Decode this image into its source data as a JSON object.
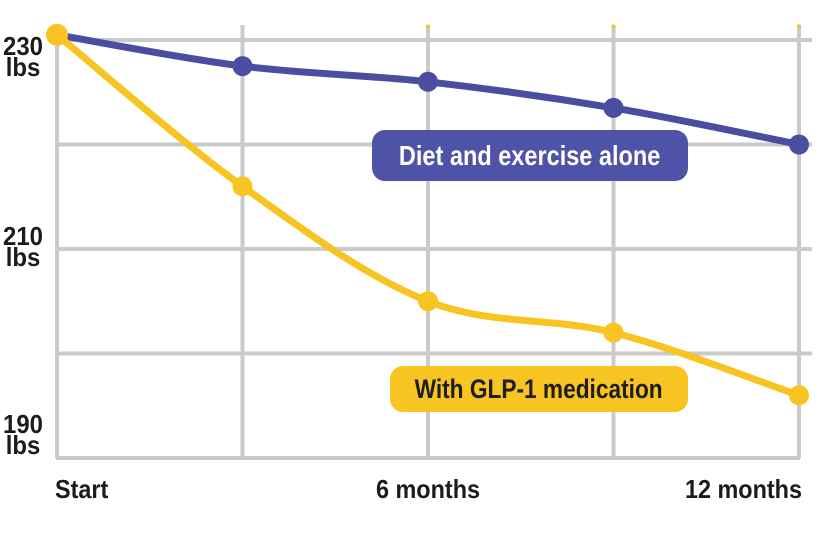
{
  "chart_data": {
    "type": "line",
    "title": "",
    "x_unit": "months",
    "x": [
      0,
      3,
      6,
      9,
      12
    ],
    "x_tick_labels": [
      {
        "text": "Start",
        "at": 0
      },
      {
        "text": "6 months",
        "at": 6
      },
      {
        "text": "12 months",
        "at": 12
      }
    ],
    "y_unit": "lbs",
    "y_gridlines": [
      230,
      220,
      210,
      200,
      190
    ],
    "y_tick_labels": [
      {
        "value": "230",
        "unit": "lbs",
        "at": 230
      },
      {
        "value": "210",
        "unit": "lbs",
        "at": 210
      },
      {
        "value": "190",
        "unit": "lbs",
        "at": 190
      }
    ],
    "y_range": [
      186,
      234
    ],
    "grid": true,
    "grid_color": "#cacaca",
    "text_color": "#1b1b1b",
    "background_color": "#ffffff",
    "legend_position": "pill-labels-on-chart",
    "series": [
      {
        "name": "Diet and exercise alone",
        "color": "#4a4ea0",
        "label_bg": "#4f53a8",
        "label_text_color": "#ffffff",
        "values": [
          230.5,
          227.5,
          226,
          223.5,
          220
        ]
      },
      {
        "name": "With GLP-1 medication",
        "color": "#f8c422",
        "label_bg": "#f8c422",
        "label_text_color": "#1d1d1b",
        "values": [
          230.5,
          216,
          205,
          202,
          196
        ]
      }
    ]
  }
}
